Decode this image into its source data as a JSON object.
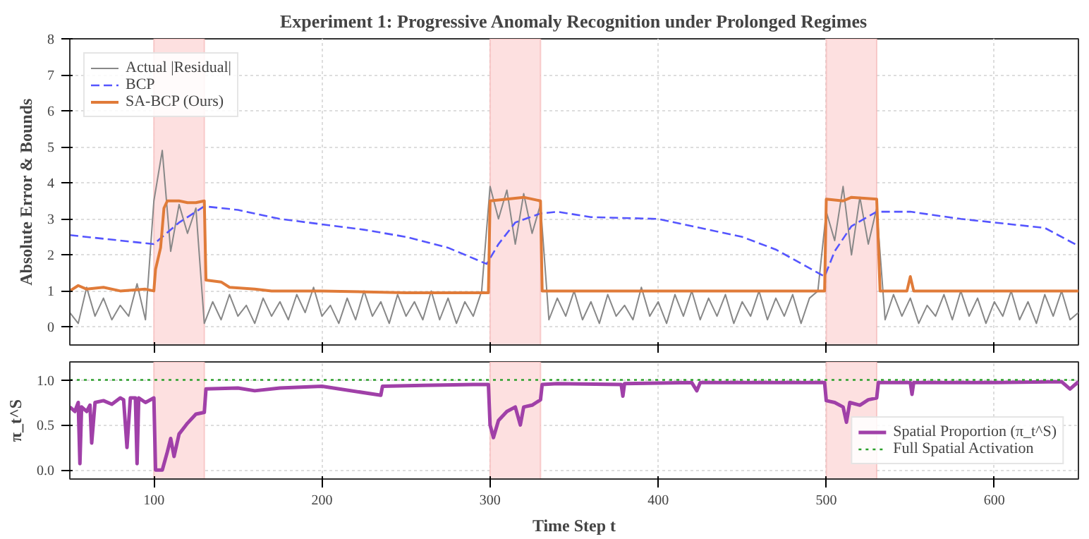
{
  "chart_data": [
    {
      "type": "line",
      "title": "Experiment 1: Progressive Anomaly Recognition under Prolonged Regimes",
      "ylabel": "Absolute Error & Bounds",
      "xlim": [
        50,
        650
      ],
      "xticks": [
        100,
        200,
        300,
        400,
        500,
        600
      ],
      "ylim": [
        -0.5,
        8
      ],
      "yticks": [
        0,
        1,
        2,
        3,
        4,
        5,
        6,
        7,
        8
      ],
      "tick_labels": "y",
      "grid": true,
      "legend": "top left",
      "bands": [
        {
          "axis": "x",
          "from": 100,
          "to": 130,
          "color": "#fde0e0"
        },
        {
          "axis": "x",
          "from": 300,
          "to": 330,
          "color": "#fde0e0"
        },
        {
          "axis": "x",
          "from": 500,
          "to": 530,
          "color": "#fde0e0"
        }
      ],
      "series": [
        {
          "name": "Actual |Residual|",
          "color": "#888888",
          "line_style": "solid",
          "x": [
            50,
            55,
            60,
            65,
            70,
            75,
            80,
            85,
            90,
            95,
            100,
            105,
            110,
            115,
            120,
            125,
            130,
            135,
            140,
            145,
            150,
            155,
            160,
            165,
            170,
            175,
            180,
            185,
            190,
            195,
            200,
            205,
            210,
            215,
            220,
            225,
            230,
            235,
            240,
            245,
            250,
            255,
            260,
            265,
            270,
            275,
            280,
            285,
            290,
            295,
            300,
            305,
            310,
            315,
            320,
            325,
            330,
            335,
            340,
            345,
            350,
            355,
            360,
            365,
            370,
            375,
            380,
            385,
            390,
            395,
            400,
            405,
            410,
            415,
            420,
            425,
            430,
            435,
            440,
            445,
            450,
            455,
            460,
            465,
            470,
            475,
            480,
            485,
            490,
            495,
            500,
            505,
            510,
            515,
            520,
            525,
            530,
            535,
            540,
            545,
            550,
            555,
            560,
            565,
            570,
            575,
            580,
            585,
            590,
            595,
            600,
            605,
            610,
            615,
            620,
            625,
            630,
            635,
            640,
            645,
            650
          ],
          "values": [
            0.4,
            0.1,
            1.1,
            0.3,
            0.8,
            0.2,
            0.6,
            0.3,
            1.2,
            0.2,
            3.5,
            4.9,
            2.1,
            3.4,
            2.6,
            3.3,
            0.1,
            0.7,
            0.2,
            0.9,
            0.3,
            0.6,
            0.1,
            0.8,
            0.3,
            0.7,
            0.2,
            0.9,
            0.4,
            1.1,
            0.3,
            0.6,
            0.1,
            0.8,
            0.2,
            1.0,
            0.3,
            0.7,
            0.1,
            0.9,
            0.3,
            0.7,
            0.2,
            1.0,
            0.2,
            0.8,
            0.1,
            0.7,
            0.3,
            1.0,
            3.9,
            3.0,
            3.8,
            2.3,
            3.7,
            2.6,
            3.4,
            0.2,
            0.8,
            0.3,
            1.0,
            0.2,
            0.7,
            0.1,
            0.9,
            0.3,
            0.6,
            0.2,
            1.1,
            0.3,
            0.7,
            0.1,
            0.9,
            0.3,
            1.0,
            0.2,
            0.8,
            0.3,
            0.9,
            0.1,
            0.7,
            0.3,
            1.0,
            0.2,
            0.8,
            0.3,
            0.9,
            0.1,
            0.8,
            1.0,
            3.2,
            2.4,
            3.9,
            2.0,
            3.6,
            2.3,
            3.3,
            0.2,
            0.9,
            0.3,
            0.8,
            0.1,
            0.6,
            0.3,
            0.9,
            0.2,
            1.0,
            0.3,
            0.8,
            0.1,
            0.7,
            0.3,
            1.0,
            0.2,
            0.7,
            0.1,
            0.9,
            0.3,
            1.0,
            0.2,
            0.4
          ]
        },
        {
          "name": "BCP",
          "color": "#5555ff",
          "line_style": "dashed",
          "x": [
            50,
            100,
            105,
            115,
            125,
            130,
            150,
            175,
            200,
            225,
            250,
            275,
            298,
            305,
            315,
            330,
            340,
            360,
            400,
            430,
            450,
            470,
            499,
            505,
            515,
            530,
            550,
            580,
            610,
            630,
            650
          ],
          "values": [
            2.55,
            2.3,
            2.5,
            2.9,
            3.2,
            3.35,
            3.25,
            3.0,
            2.85,
            2.7,
            2.5,
            2.2,
            1.75,
            2.3,
            2.9,
            3.15,
            3.2,
            3.05,
            3.0,
            2.7,
            2.5,
            2.15,
            1.4,
            2.1,
            2.8,
            3.2,
            3.2,
            3.0,
            2.85,
            2.75,
            2.25
          ]
        },
        {
          "name": "SA-BCP (Ours)",
          "color": "#e07b39",
          "line_style": "solid",
          "x": [
            50,
            55,
            60,
            70,
            80,
            95,
            100,
            101,
            104,
            106,
            108,
            115,
            120,
            125,
            130,
            131,
            140,
            145,
            160,
            170,
            200,
            250,
            299,
            300,
            310,
            320,
            330,
            331,
            380,
            460,
            499,
            500,
            510,
            515,
            530,
            532,
            548,
            550,
            552,
            600,
            650
          ],
          "values": [
            1.0,
            1.15,
            1.05,
            1.1,
            1.0,
            1.05,
            1.0,
            1.6,
            2.2,
            3.3,
            3.5,
            3.5,
            3.45,
            3.45,
            3.5,
            1.3,
            1.25,
            1.1,
            1.05,
            1.0,
            1.0,
            0.95,
            0.95,
            3.5,
            3.55,
            3.6,
            3.5,
            1.0,
            1.0,
            1.0,
            1.0,
            3.55,
            3.5,
            3.6,
            3.55,
            1.0,
            1.0,
            1.4,
            1.0,
            1.0,
            1.0
          ]
        }
      ]
    },
    {
      "type": "line",
      "xlabel": "Time Step t",
      "ylabel": "π_t^S",
      "xlim": [
        50,
        650
      ],
      "xticks": [
        100,
        200,
        300,
        400,
        500,
        600
      ],
      "ylim": [
        -0.1,
        1.2
      ],
      "yticks": [
        {
          "value": 0,
          "label": "0.0"
        },
        0.5,
        {
          "value": 1,
          "label": "1.0"
        }
      ],
      "grid": true,
      "legend": "bottom right",
      "bands": [
        {
          "axis": "x",
          "from": 100,
          "to": 130,
          "color": "#fde0e0"
        },
        {
          "axis": "x",
          "from": 300,
          "to": 330,
          "color": "#fde0e0"
        },
        {
          "axis": "x",
          "from": 500,
          "to": 530,
          "color": "#fde0e0"
        }
      ],
      "ref_lines": [
        {
          "axis": "y",
          "value": 1.0,
          "label": "Full Spatial Activation",
          "color": "#2ca02c",
          "line_style": "dotted"
        }
      ],
      "series": [
        {
          "name": "Spatial Proportion (π_t^S)",
          "color": "#a040a8",
          "line_style": "solid",
          "x": [
            50,
            53,
            55,
            56,
            57,
            60,
            62,
            63,
            65,
            70,
            75,
            80,
            82,
            84,
            86,
            89,
            90,
            91,
            95,
            100,
            101,
            105,
            108,
            110,
            112,
            115,
            120,
            125,
            130,
            131,
            150,
            160,
            175,
            200,
            235,
            236,
            260,
            290,
            299,
            300,
            302,
            305,
            310,
            315,
            318,
            320,
            325,
            330,
            331,
            340,
            378,
            379,
            380,
            420,
            423,
            425,
            490,
            499,
            500,
            505,
            510,
            512,
            514,
            520,
            525,
            530,
            531,
            550,
            551,
            552,
            600,
            640,
            645,
            650
          ],
          "values": [
            0.7,
            0.65,
            0.75,
            0.07,
            0.7,
            0.65,
            0.72,
            0.3,
            0.75,
            0.77,
            0.73,
            0.8,
            0.78,
            0.25,
            0.8,
            0.8,
            0.07,
            0.8,
            0.75,
            0.8,
            0.0,
            0.0,
            0.2,
            0.35,
            0.15,
            0.4,
            0.52,
            0.62,
            0.64,
            0.9,
            0.91,
            0.88,
            0.91,
            0.93,
            0.83,
            0.93,
            0.94,
            0.95,
            0.95,
            0.5,
            0.36,
            0.55,
            0.65,
            0.7,
            0.5,
            0.7,
            0.72,
            0.78,
            0.95,
            0.96,
            0.95,
            0.82,
            0.96,
            0.97,
            0.88,
            0.97,
            0.97,
            0.97,
            0.77,
            0.75,
            0.7,
            0.53,
            0.75,
            0.72,
            0.78,
            0.8,
            0.97,
            0.97,
            0.84,
            0.97,
            0.97,
            0.98,
            0.9,
            0.98
          ]
        }
      ]
    }
  ]
}
